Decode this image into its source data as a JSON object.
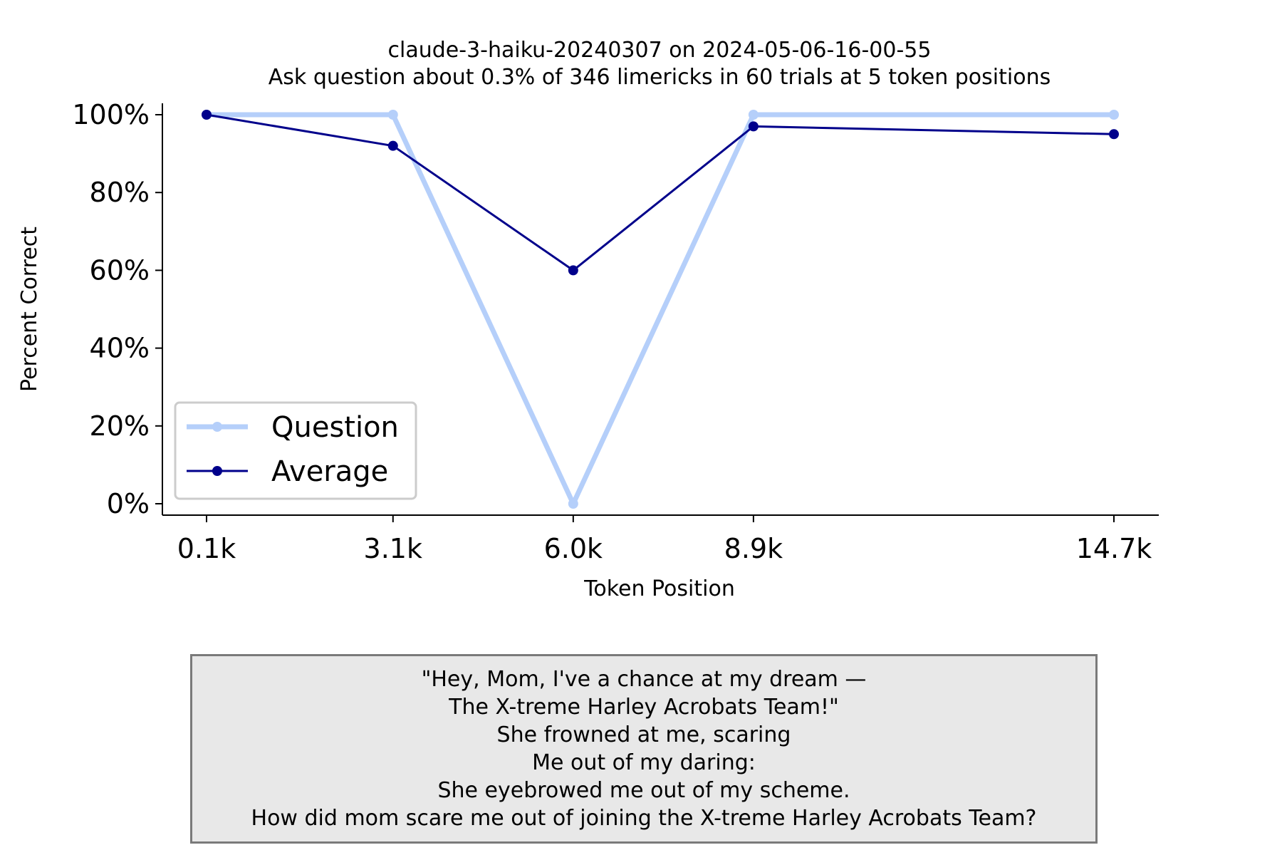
{
  "chart_data": {
    "type": "line",
    "title": "claude-3-haiku-20240307 on 2024-05-06-16-00-55",
    "subtitle": "Ask question about 0.3% of 346 limericks in 60 trials at 5 token positions",
    "xlabel": "Token Position",
    "ylabel": "Percent Correct",
    "x": [
      0.1,
      3.1,
      6.0,
      8.9,
      14.7
    ],
    "x_unit": "k tokens",
    "x_tick_labels": [
      "0.1k",
      "3.1k",
      "6.0k",
      "8.9k",
      "14.7k"
    ],
    "y_ticks": [
      0,
      20,
      40,
      60,
      80,
      100
    ],
    "y_tick_labels": [
      "0%",
      "20%",
      "40%",
      "60%",
      "80%",
      "100%"
    ],
    "ylim": [
      0,
      100
    ],
    "grid": false,
    "legend": "lower-left",
    "series": [
      {
        "name": "Question",
        "color": "#b5cffa",
        "values": [
          100,
          100,
          0,
          100,
          100
        ]
      },
      {
        "name": "Average",
        "color": "#00008b",
        "values": [
          100,
          92,
          60,
          97,
          95
        ]
      }
    ]
  },
  "limerick": [
    "\"Hey, Mom, I've a chance at my dream —",
    "The X-treme Harley Acrobats Team!\"",
    "She frowned at me, scaring",
    "Me out of my daring:",
    "She eyebrowed me out of my scheme.",
    "How did mom scare me out of joining the X-treme Harley Acrobats Team?"
  ]
}
